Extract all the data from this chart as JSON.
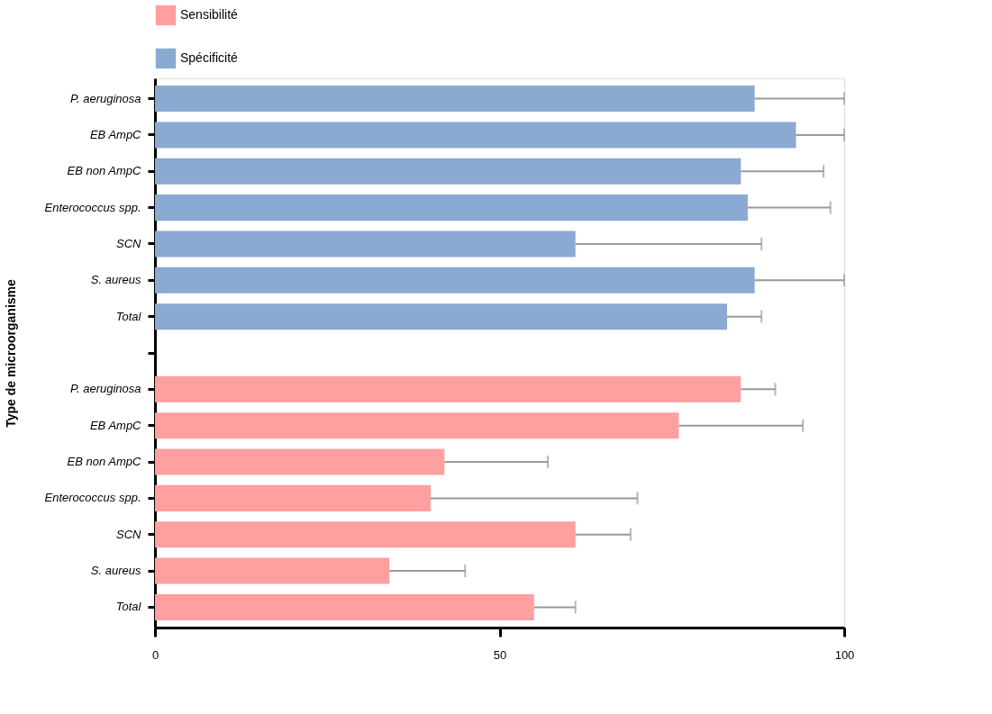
{
  "chart_data": {
    "type": "bar",
    "orientation": "horizontal",
    "ylabel": "Type de microorganisme",
    "categories": [
      "P. aeruginosa",
      "EB AmpC",
      "EB non AmpC",
      "Enterococcus spp.",
      "SCN",
      "S. aureus",
      "Total",
      null,
      "P. aeruginosa",
      "EB AmpC",
      "EB non AmpC",
      "Enterococcus spp.",
      "SCN",
      "S. aureus",
      "Total"
    ],
    "series": [
      {
        "name": "Sensibilité",
        "color": "#ff9f9f",
        "values": [
          null,
          null,
          null,
          null,
          null,
          null,
          null,
          null,
          85,
          76,
          42,
          40,
          61,
          34,
          55
        ],
        "errors": [
          null,
          null,
          null,
          null,
          null,
          null,
          null,
          null,
          [
            85,
            90
          ],
          [
            76,
            94
          ],
          [
            42,
            57
          ],
          [
            40,
            70
          ],
          [
            61,
            69
          ],
          [
            34,
            45
          ],
          [
            55,
            61
          ]
        ]
      },
      {
        "name": "Spécificité",
        "color": "#8aaad2",
        "values": [
          87,
          93,
          85,
          86,
          61,
          87,
          83,
          null,
          null,
          null,
          null,
          null,
          null,
          null,
          null
        ],
        "errors": [
          [
            87,
            100
          ],
          [
            93,
            100
          ],
          [
            85,
            97
          ],
          [
            86,
            98
          ],
          [
            61,
            88
          ],
          [
            87,
            100
          ],
          [
            83,
            88
          ],
          null,
          null,
          null,
          null,
          null,
          null,
          null,
          null
        ]
      }
    ],
    "xlim": [
      0,
      100
    ],
    "xticks": [
      0,
      50,
      100
    ],
    "grid": false,
    "legend": "top"
  }
}
